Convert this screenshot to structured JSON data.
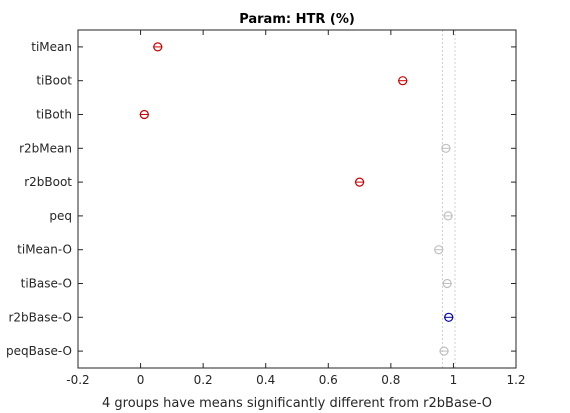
{
  "chart_data": {
    "type": "scatter",
    "title": "Param: HTR (%)",
    "xlabel": "4 groups have means significantly different from r2bBase-O",
    "ylabel": "",
    "xlim": [
      -0.2,
      1.2
    ],
    "xticks": [
      "-0.2",
      "0",
      "0.2",
      "0.4",
      "0.6",
      "0.8",
      "1",
      "1.2"
    ],
    "grid": false,
    "reference_group": "r2bBase-O",
    "reference_interval": [
      0.965,
      1.005
    ],
    "groups": [
      {
        "name": "tiMean",
        "mean": 0.055,
        "lo": 0.04,
        "hi": 0.07,
        "status": "significant"
      },
      {
        "name": "tiBoot",
        "mean": 0.838,
        "lo": 0.823,
        "hi": 0.853,
        "status": "significant"
      },
      {
        "name": "tiBoth",
        "mean": 0.012,
        "lo": -0.003,
        "hi": 0.027,
        "status": "significant"
      },
      {
        "name": "r2bMean",
        "mean": 0.976,
        "lo": 0.961,
        "hi": 0.991,
        "status": "not-significant"
      },
      {
        "name": "r2bBoot",
        "mean": 0.7,
        "lo": 0.685,
        "hi": 0.715,
        "status": "significant"
      },
      {
        "name": "peq",
        "mean": 0.983,
        "lo": 0.968,
        "hi": 0.998,
        "status": "not-significant"
      },
      {
        "name": "tiMean-O",
        "mean": 0.953,
        "lo": 0.938,
        "hi": 0.968,
        "status": "not-significant"
      },
      {
        "name": "tiBase-O",
        "mean": 0.98,
        "lo": 0.965,
        "hi": 0.995,
        "status": "not-significant"
      },
      {
        "name": "r2bBase-O",
        "mean": 0.985,
        "lo": 0.97,
        "hi": 1.0,
        "status": "reference"
      },
      {
        "name": "peqBase-O",
        "mean": 0.97,
        "lo": 0.955,
        "hi": 0.985,
        "status": "not-significant"
      }
    ],
    "colors": {
      "significant": "#cc0000",
      "reference": "#0000aa",
      "not-significant": "#c0c0c0",
      "reference_lines": "#d0d0d0",
      "axis": "#262626"
    }
  }
}
